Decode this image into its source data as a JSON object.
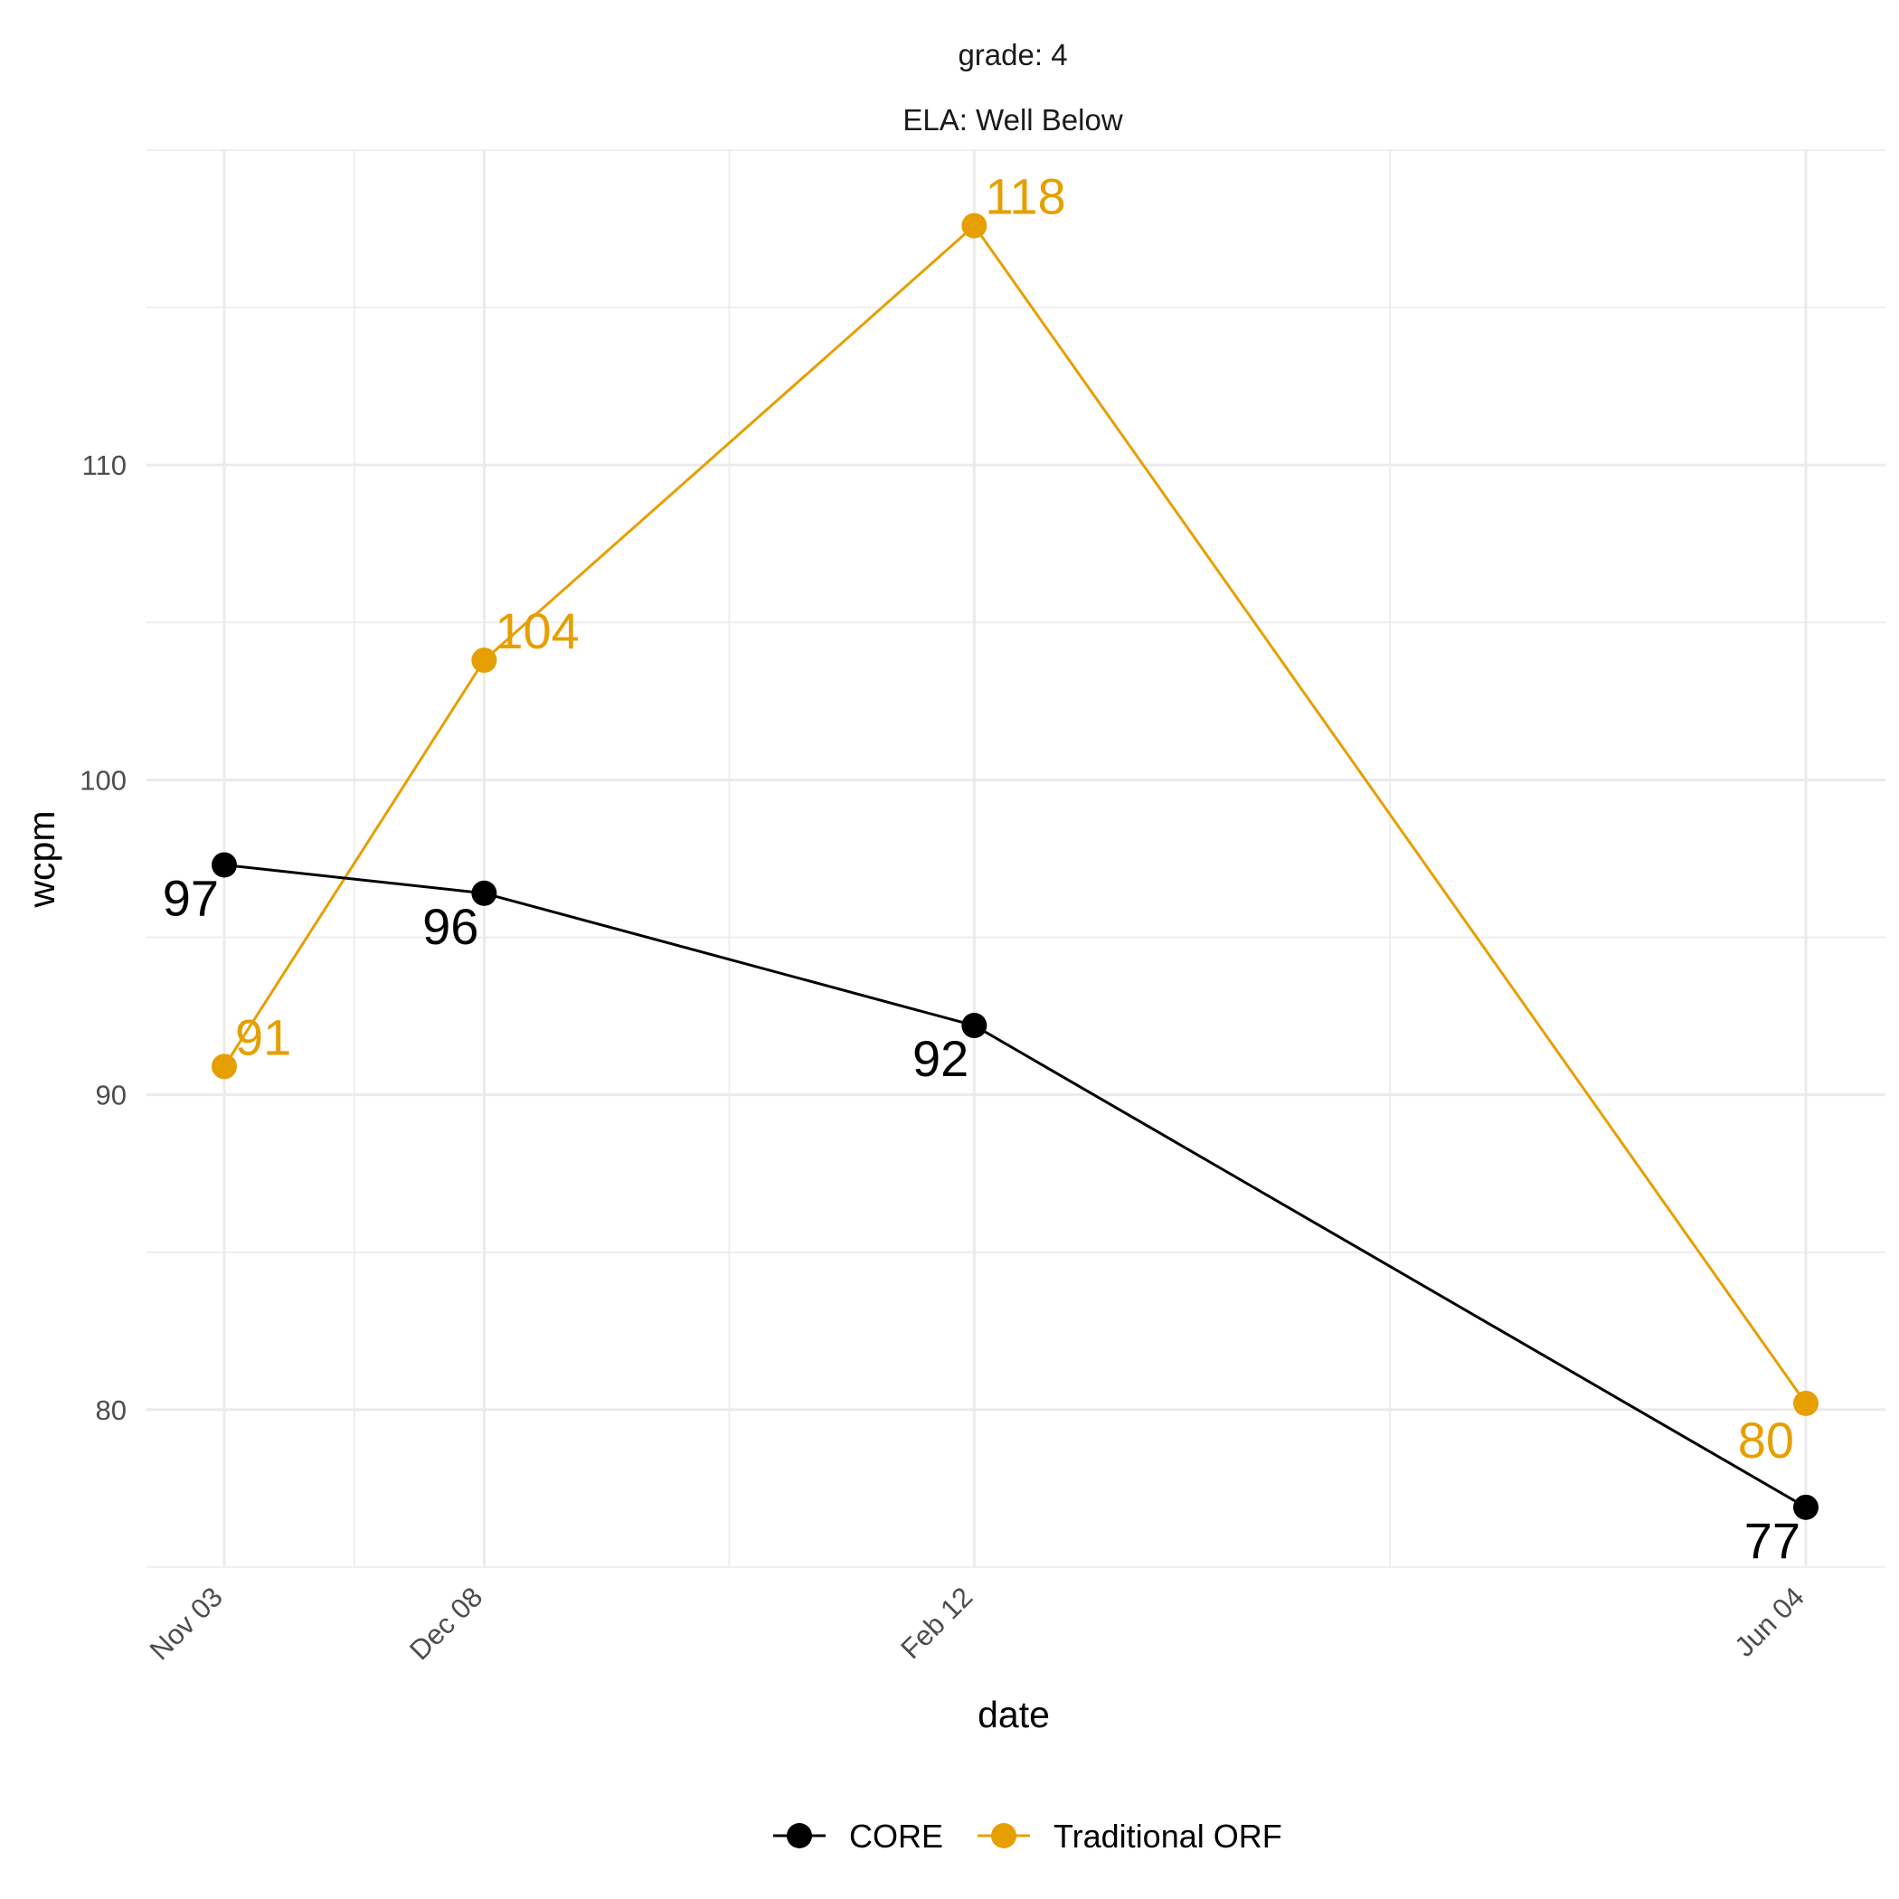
{
  "chart_data": {
    "type": "line",
    "strip_labels": [
      "grade: 4",
      "ELA: Well Below"
    ],
    "xlabel": "date",
    "ylabel": "wcpm",
    "x_ticks": [
      "Nov 03",
      "Dec 08",
      "Feb 12",
      "Jun 04"
    ],
    "x_dates": [
      "11-03",
      "12-08",
      "02-12",
      "06-04"
    ],
    "y_ticks": [
      80,
      90,
      100,
      110
    ],
    "ylim": [
      75,
      120
    ],
    "grid": true,
    "legend_position": "bottom",
    "series": [
      {
        "name": "CORE",
        "color": "#000000",
        "values": [
          97.3,
          96.4,
          92.2,
          76.9
        ],
        "labels": [
          "97",
          "96",
          "92",
          "77"
        ],
        "label_side": "below-left"
      },
      {
        "name": "Traditional ORF",
        "color": "#E69F00",
        "values": [
          90.9,
          103.8,
          117.6,
          80.2
        ],
        "labels": [
          "91",
          "104",
          "118",
          "80"
        ],
        "label_side": "above-right"
      }
    ]
  }
}
